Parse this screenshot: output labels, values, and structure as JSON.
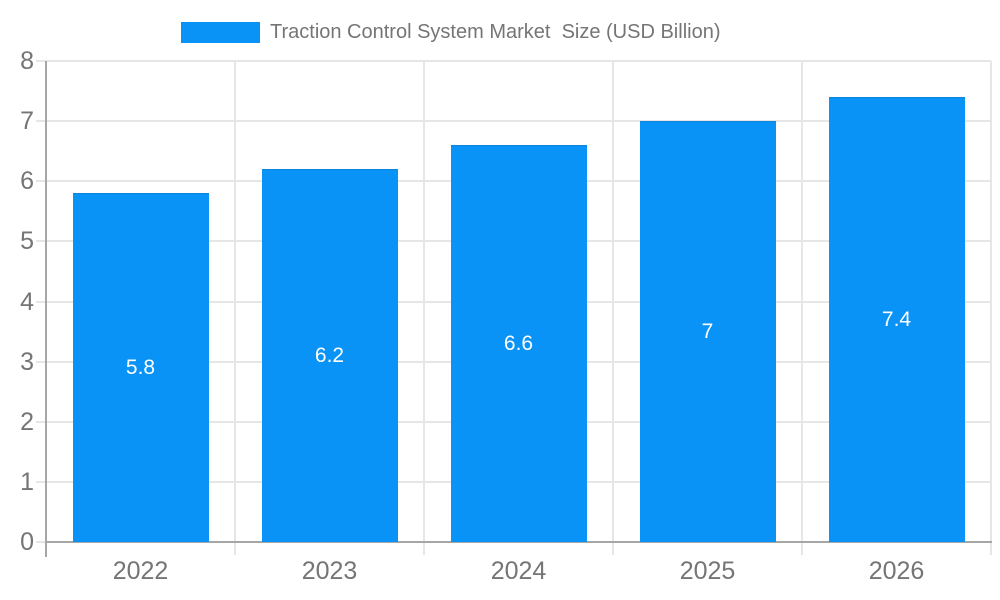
{
  "chart_data": {
    "type": "bar",
    "title": "Traction Control System Market  Size (USD Billion)",
    "categories": [
      "2022",
      "2023",
      "2024",
      "2025",
      "2026"
    ],
    "values": [
      5.8,
      6.2,
      6.6,
      7,
      7.4
    ],
    "value_labels": [
      "5.8",
      "6.2",
      "6.6",
      "7",
      "7.4"
    ],
    "xlabel": "",
    "ylabel": "",
    "ylim": [
      0,
      8
    ],
    "y_tick_labels": [
      "0",
      "1",
      "2",
      "3",
      "4",
      "5",
      "6",
      "7",
      "8"
    ],
    "grid": "on",
    "legend_position": "top",
    "colors": {
      "bar": "#0a93f6",
      "bar_edge": "#0d85dd",
      "value_label": "#ffffff",
      "axis_text": "#757575",
      "axis_line": "#a6a6a6",
      "gridline": "#e6e6e6",
      "background": "#ffffff"
    }
  }
}
